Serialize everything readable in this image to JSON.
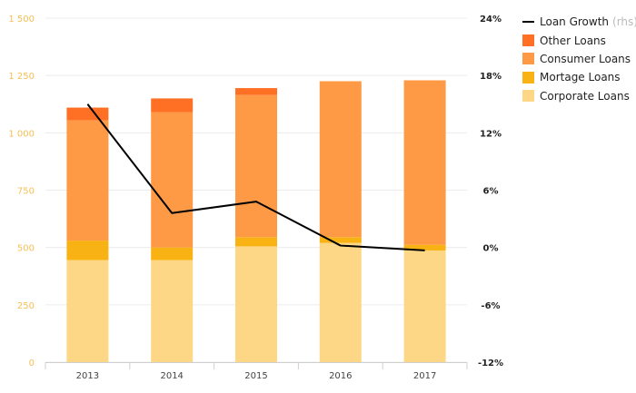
{
  "chart_data": {
    "type": "bar",
    "stacked": true,
    "categories": [
      "2013",
      "2014",
      "2015",
      "2016",
      "2017"
    ],
    "series": [
      {
        "name": "Corporate Loans",
        "color": "#fdd786",
        "values": [
          445,
          445,
          505,
          520,
          487
        ]
      },
      {
        "name": "Mortage Loans",
        "color": "#f9b213",
        "values": [
          85,
          55,
          40,
          25,
          25
        ]
      },
      {
        "name": "Consumer Loans",
        "color": "#fe9a46",
        "values": [
          525,
          590,
          620,
          680,
          717
        ]
      },
      {
        "name": "Other Loans",
        "color": "#ff7025",
        "values": [
          55,
          60,
          30,
          0,
          0
        ]
      }
    ],
    "line_series": {
      "name": "Loan Growth",
      "axis_note": "(rhs)",
      "color": "#000000",
      "values": [
        15.0,
        3.6,
        4.8,
        0.2,
        -0.3
      ]
    },
    "y_left": {
      "ylim": [
        0,
        1500
      ],
      "ticks": [
        0,
        250,
        500,
        750,
        1000,
        1250,
        1500
      ],
      "tick_labels": [
        "0",
        "250",
        "500",
        "750",
        "1 000",
        "1 250",
        "1 500"
      ],
      "label_color": "#f6bf55"
    },
    "y_right": {
      "ylim": [
        -12,
        24
      ],
      "ticks": [
        -12,
        -6,
        0,
        6,
        12,
        18,
        24
      ],
      "tick_labels": [
        "-12%",
        "-6%",
        "0%",
        "6%",
        "12%",
        "18%",
        "24%"
      ]
    },
    "grid": true,
    "legend_position": "top-right",
    "legend_order": [
      "Loan Growth",
      "Other Loans",
      "Consumer Loans",
      "Mortage Loans",
      "Corporate Loans"
    ]
  }
}
